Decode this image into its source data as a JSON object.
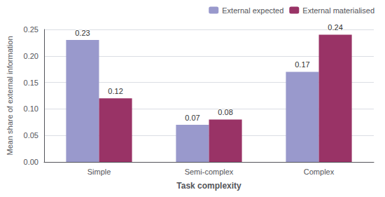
{
  "chart_data": {
    "type": "bar",
    "categories": [
      "Simple",
      "Semi-complex",
      "Complex"
    ],
    "series": [
      {
        "name": "External expected",
        "color": "#9999CC",
        "values": [
          0.23,
          0.07,
          0.17
        ]
      },
      {
        "name": "External materialised",
        "color": "#993366",
        "values": [
          0.12,
          0.08,
          0.24
        ]
      }
    ],
    "x_label": "Task complexity",
    "y_label": "Mean share of external information",
    "ylim": [
      0.0,
      0.25
    ],
    "yticks": [
      {
        "value": 0.0,
        "label": "0.00"
      },
      0.05,
      {
        "value": 0.1,
        "label": "0.10"
      },
      0.15,
      {
        "value": 0.2,
        "label": "0.20"
      },
      0.25
    ],
    "grid": true,
    "legend": "upper right",
    "data_labels": true
  }
}
